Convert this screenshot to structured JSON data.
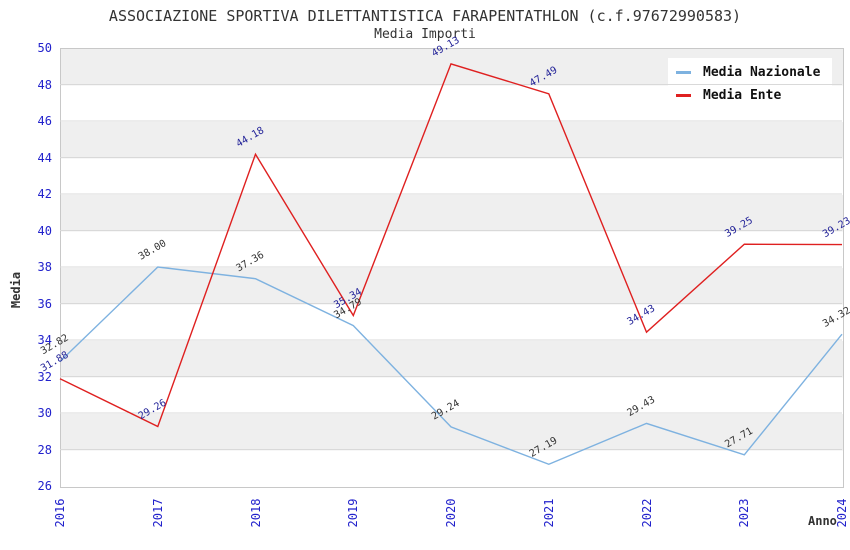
{
  "title": "ASSOCIAZIONE SPORTIVA DILETTANTISTICA FARAPENTATHLON (c.f.97672990583)",
  "subtitle": "Media Importi",
  "axes": {
    "y_title": "Media",
    "x_title": "Anno",
    "y_ticks": [
      50,
      48,
      46,
      44,
      42,
      40,
      38,
      36,
      34,
      32,
      30,
      28,
      26
    ],
    "x_ticks": [
      "2016",
      "2017",
      "2018",
      "2019",
      "2020",
      "2021",
      "2022",
      "2023",
      "2024"
    ],
    "tick_color": "#2222CC"
  },
  "legend": {
    "items": [
      {
        "label": "Media Nazionale",
        "color": "#7EB2E0"
      },
      {
        "label": "Media Ente",
        "color": "#DF2020"
      }
    ]
  },
  "chart_data": {
    "type": "line",
    "title": "ASSOCIAZIONE SPORTIVA DILETTANTISTICA FARAPENTATHLON (c.f.97672990583)",
    "subtitle": "Media Importi",
    "xlabel": "Anno",
    "ylabel": "Media",
    "x": [
      2016,
      2017,
      2018,
      2019,
      2020,
      2021,
      2022,
      2023,
      2024
    ],
    "ylim": [
      26,
      50
    ],
    "y_tick_step": 2,
    "grid": "horizontal",
    "legend_position": "top-right",
    "series": [
      {
        "name": "Media Nazionale",
        "color": "#7EB2E0",
        "label_color": "#333333",
        "values": [
          32.82,
          38.0,
          37.36,
          34.79,
          29.24,
          27.19,
          29.43,
          27.71,
          34.32
        ]
      },
      {
        "name": "Media Ente",
        "color": "#DF2020",
        "label_color": "#242499",
        "values": [
          31.88,
          29.26,
          44.18,
          35.34,
          49.13,
          47.49,
          34.43,
          39.25,
          39.23
        ]
      }
    ],
    "colors": {
      "band_gray": "#EFEFEF",
      "band_white": "#FFFFFF",
      "plot_border": "#C8C8C8",
      "gridline": "#D9D9D9"
    }
  }
}
